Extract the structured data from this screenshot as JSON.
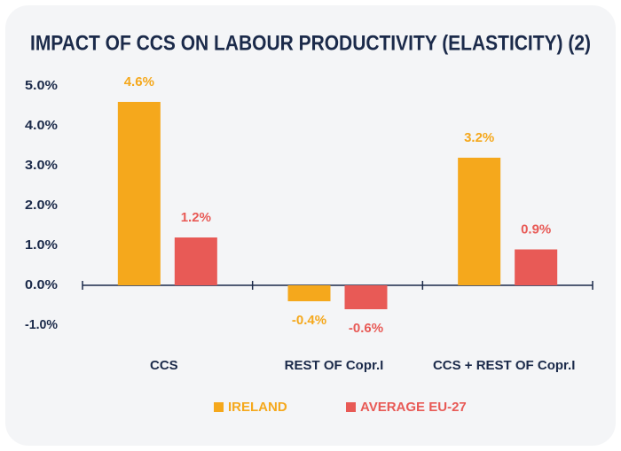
{
  "chart_data": {
    "type": "bar",
    "title": "IMPACT OF CCS ON LABOUR PRODUCTIVITY (ELASTICITY) (2)",
    "categories": [
      "CCS",
      "REST OF Copr.I",
      "CCS + REST OF Copr.I"
    ],
    "series": [
      {
        "name": "IRELAND",
        "color": "#f5a81c",
        "values": [
          4.6,
          -0.4,
          3.2
        ],
        "value_labels": [
          "4.6%",
          "-0.4%",
          "3.2%"
        ]
      },
      {
        "name": "AVERAGE EU-27",
        "color": "#e85a56",
        "values": [
          1.2,
          -0.6,
          0.9
        ],
        "value_labels": [
          "1.2%",
          "-0.6%",
          "0.9%"
        ]
      }
    ],
    "ylim": [
      -1,
      5
    ],
    "yticks": [
      {
        "value": -1,
        "label": "-1.0%"
      },
      {
        "value": 0,
        "label": "0.0%"
      },
      {
        "value": 1,
        "label": "1.0%"
      },
      {
        "value": 2,
        "label": "2.0%"
      },
      {
        "value": 3,
        "label": "3.0%"
      },
      {
        "value": 4,
        "label": "4.0%"
      },
      {
        "value": 5,
        "label": "5.0%"
      }
    ],
    "grid": false,
    "legend": "bottom"
  }
}
